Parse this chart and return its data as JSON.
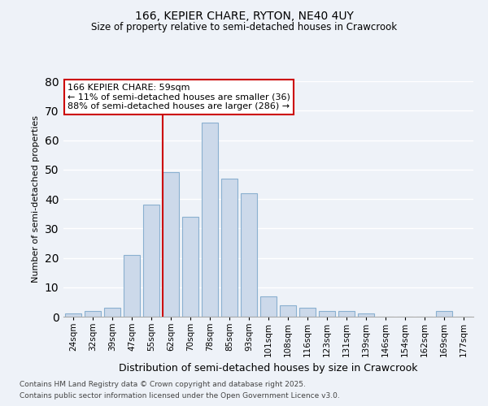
{
  "title1": "166, KEPIER CHARE, RYTON, NE40 4UY",
  "title2": "Size of property relative to semi-detached houses in Crawcrook",
  "xlabel": "Distribution of semi-detached houses by size in Crawcrook",
  "ylabel": "Number of semi-detached properties",
  "categories": [
    "24sqm",
    "32sqm",
    "39sqm",
    "47sqm",
    "55sqm",
    "62sqm",
    "70sqm",
    "78sqm",
    "85sqm",
    "93sqm",
    "101sqm",
    "108sqm",
    "116sqm",
    "123sqm",
    "131sqm",
    "139sqm",
    "146sqm",
    "154sqm",
    "162sqm",
    "169sqm",
    "177sqm"
  ],
  "values": [
    1,
    2,
    3,
    21,
    38,
    49,
    34,
    66,
    47,
    42,
    7,
    4,
    3,
    2,
    2,
    1,
    0,
    0,
    0,
    2,
    0
  ],
  "bar_color": "#ccd9ea",
  "bar_edge_color": "#8ab0d0",
  "annotation_title": "166 KEPIER CHARE: 59sqm",
  "annotation_line1": "← 11% of semi-detached houses are smaller (36)",
  "annotation_line2": "88% of semi-detached houses are larger (286) →",
  "annotation_box_color": "#cc0000",
  "vline_index": 5,
  "ylim": [
    0,
    80
  ],
  "yticks": [
    0,
    10,
    20,
    30,
    40,
    50,
    60,
    70,
    80
  ],
  "footnote1": "Contains HM Land Registry data © Crown copyright and database right 2025.",
  "footnote2": "Contains public sector information licensed under the Open Government Licence v3.0.",
  "bg_color": "#eef2f8",
  "grid_color": "#ffffff"
}
